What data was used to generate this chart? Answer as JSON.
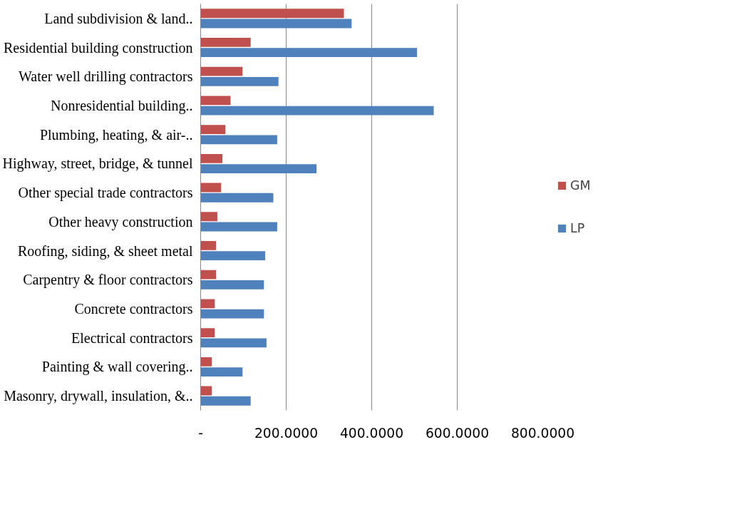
{
  "chart_data": {
    "type": "bar",
    "orientation": "horizontal",
    "categories": [
      "Land subdivision & land..",
      "Residential building construction",
      "Water well drilling contractors",
      "Nonresidential building..",
      "Plumbing, heating, & air-..",
      "Highway, street, bridge, & tunnel",
      "Other special trade contractors",
      "Other heavy construction",
      "Roofing, siding, & sheet metal",
      "Carpentry & floor contractors",
      "Concrete contractors",
      "Electrical contractors",
      "Painting & wall covering..",
      "Masonry, drywall, insulation, &.."
    ],
    "series": [
      {
        "name": "GM",
        "color": "#c0504d",
        "values": [
          335,
          117,
          98,
          70,
          58,
          51,
          48,
          39,
          36,
          36,
          33,
          33,
          26,
          26
        ]
      },
      {
        "name": "LP",
        "color": "#4f81bd",
        "values": [
          353,
          506,
          182,
          545,
          179,
          271,
          170,
          179,
          151,
          148,
          148,
          154,
          98,
          117
        ]
      }
    ],
    "xlim": [
      0,
      800
    ],
    "xticks": [
      {
        "value": 0,
        "label": "-"
      },
      {
        "value": 200,
        "label": "200.0000"
      },
      {
        "value": 400,
        "label": "400.0000"
      },
      {
        "value": 600,
        "label": "600.0000"
      },
      {
        "value": 800,
        "label": "800.0000"
      }
    ],
    "grid": "x",
    "legend": "right"
  }
}
